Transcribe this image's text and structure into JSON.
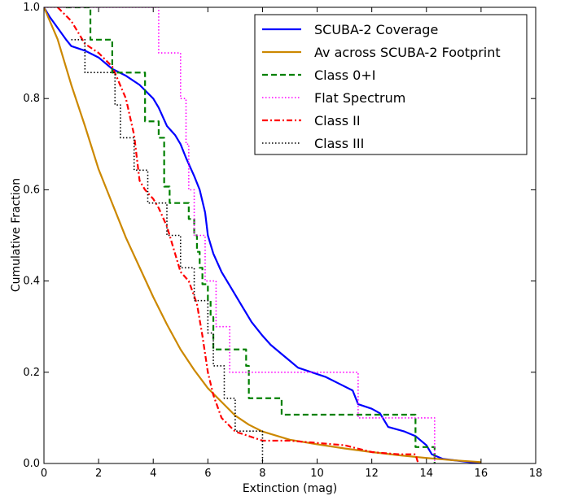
{
  "chart_data": {
    "type": "line",
    "title": "",
    "xlabel": "Extinction (mag)",
    "ylabel": "Cumulative Fraction",
    "xlim": [
      0,
      18
    ],
    "ylim": [
      0,
      1.0
    ],
    "x_ticks": [
      0,
      2,
      4,
      6,
      8,
      10,
      12,
      14,
      16,
      18
    ],
    "y_ticks": [
      0.0,
      0.2,
      0.4,
      0.6,
      0.8,
      1.0
    ],
    "grid": false,
    "legend_position": "top-right",
    "series": [
      {
        "name": "SCUBA-2 Coverage",
        "color": "#0000ff",
        "style": "solid",
        "step": false,
        "points": [
          [
            0.0,
            1.0
          ],
          [
            0.2,
            0.98
          ],
          [
            0.5,
            0.955
          ],
          [
            0.8,
            0.93
          ],
          [
            1.0,
            0.915
          ],
          [
            1.5,
            0.905
          ],
          [
            2.0,
            0.89
          ],
          [
            2.5,
            0.865
          ],
          [
            3.0,
            0.85
          ],
          [
            3.5,
            0.83
          ],
          [
            4.0,
            0.8
          ],
          [
            4.2,
            0.78
          ],
          [
            4.5,
            0.74
          ],
          [
            4.8,
            0.72
          ],
          [
            5.0,
            0.7
          ],
          [
            5.2,
            0.67
          ],
          [
            5.5,
            0.63
          ],
          [
            5.7,
            0.6
          ],
          [
            5.9,
            0.55
          ],
          [
            6.0,
            0.5
          ],
          [
            6.2,
            0.46
          ],
          [
            6.5,
            0.42
          ],
          [
            6.8,
            0.39
          ],
          [
            7.0,
            0.37
          ],
          [
            7.3,
            0.34
          ],
          [
            7.6,
            0.31
          ],
          [
            8.0,
            0.28
          ],
          [
            8.3,
            0.26
          ],
          [
            8.7,
            0.24
          ],
          [
            9.0,
            0.225
          ],
          [
            9.3,
            0.21
          ],
          [
            9.8,
            0.2
          ],
          [
            10.3,
            0.19
          ],
          [
            10.8,
            0.175
          ],
          [
            11.3,
            0.16
          ],
          [
            11.5,
            0.13
          ],
          [
            12.0,
            0.12
          ],
          [
            12.3,
            0.11
          ],
          [
            12.6,
            0.08
          ],
          [
            13.2,
            0.07
          ],
          [
            13.6,
            0.06
          ],
          [
            13.8,
            0.05
          ],
          [
            14.0,
            0.04
          ],
          [
            14.2,
            0.02
          ],
          [
            14.6,
            0.01
          ],
          [
            16.0,
            0.0
          ]
        ]
      },
      {
        "name": "Av across SCUBA-2 Footprint",
        "color": "#cc8800",
        "style": "solid",
        "step": false,
        "points": [
          [
            0.0,
            1.0
          ],
          [
            0.5,
            0.93
          ],
          [
            1.0,
            0.83
          ],
          [
            1.5,
            0.74
          ],
          [
            2.0,
            0.645
          ],
          [
            2.5,
            0.57
          ],
          [
            3.0,
            0.495
          ],
          [
            3.5,
            0.43
          ],
          [
            4.0,
            0.365
          ],
          [
            4.5,
            0.305
          ],
          [
            5.0,
            0.25
          ],
          [
            5.5,
            0.205
          ],
          [
            6.0,
            0.165
          ],
          [
            6.5,
            0.135
          ],
          [
            7.0,
            0.105
          ],
          [
            7.5,
            0.085
          ],
          [
            8.0,
            0.07
          ],
          [
            9.0,
            0.052
          ],
          [
            10.0,
            0.042
          ],
          [
            11.0,
            0.033
          ],
          [
            12.0,
            0.025
          ],
          [
            13.0,
            0.018
          ],
          [
            14.0,
            0.012
          ],
          [
            15.0,
            0.007
          ],
          [
            16.0,
            0.003
          ]
        ]
      },
      {
        "name": "Class 0+I",
        "color": "#008000",
        "style": "dashed",
        "step": true,
        "points": [
          [
            0.8,
            1.0
          ],
          [
            1.7,
            0.929
          ],
          [
            2.5,
            0.857
          ],
          [
            3.7,
            0.75
          ],
          [
            4.2,
            0.714
          ],
          [
            4.4,
            0.607
          ],
          [
            4.6,
            0.571
          ],
          [
            5.3,
            0.536
          ],
          [
            5.5,
            0.5
          ],
          [
            5.6,
            0.464
          ],
          [
            5.7,
            0.429
          ],
          [
            5.8,
            0.393
          ],
          [
            6.0,
            0.357
          ],
          [
            6.1,
            0.321
          ],
          [
            6.2,
            0.25
          ],
          [
            7.4,
            0.214
          ],
          [
            7.5,
            0.143
          ],
          [
            8.7,
            0.107
          ],
          [
            13.6,
            0.036
          ],
          [
            14.3,
            0.0
          ]
        ]
      },
      {
        "name": "Flat Spectrum",
        "color": "#ff00ff",
        "style": "dotted",
        "step": true,
        "points": [
          [
            0.0,
            1.0
          ],
          [
            4.2,
            0.9
          ],
          [
            5.0,
            0.8
          ],
          [
            5.2,
            0.7
          ],
          [
            5.3,
            0.6
          ],
          [
            5.5,
            0.5
          ],
          [
            5.9,
            0.4
          ],
          [
            6.3,
            0.3
          ],
          [
            6.8,
            0.2
          ],
          [
            11.5,
            0.1
          ],
          [
            14.3,
            0.0
          ]
        ]
      },
      {
        "name": "Class II",
        "color": "#ff0000",
        "style": "dashdot",
        "step": false,
        "points": [
          [
            0.5,
            1.0
          ],
          [
            1.0,
            0.97
          ],
          [
            1.5,
            0.92
          ],
          [
            2.0,
            0.9
          ],
          [
            2.5,
            0.87
          ],
          [
            3.0,
            0.8
          ],
          [
            3.3,
            0.72
          ],
          [
            3.5,
            0.62
          ],
          [
            3.7,
            0.6
          ],
          [
            4.0,
            0.58
          ],
          [
            4.2,
            0.56
          ],
          [
            4.5,
            0.52
          ],
          [
            4.8,
            0.46
          ],
          [
            5.0,
            0.42
          ],
          [
            5.3,
            0.4
          ],
          [
            5.6,
            0.35
          ],
          [
            5.8,
            0.28
          ],
          [
            6.0,
            0.2
          ],
          [
            6.2,
            0.15
          ],
          [
            6.5,
            0.1
          ],
          [
            7.0,
            0.07
          ],
          [
            7.5,
            0.06
          ],
          [
            8.0,
            0.05
          ],
          [
            9.0,
            0.05
          ],
          [
            10.0,
            0.045
          ],
          [
            11.0,
            0.04
          ],
          [
            12.0,
            0.025
          ],
          [
            13.0,
            0.02
          ],
          [
            13.6,
            0.02
          ],
          [
            13.7,
            0.0
          ]
        ]
      },
      {
        "name": "Class III",
        "color": "#000000",
        "style": "dotted",
        "step": true,
        "points": [
          [
            1.0,
            0.929
          ],
          [
            1.5,
            0.857
          ],
          [
            2.6,
            0.786
          ],
          [
            2.8,
            0.714
          ],
          [
            3.3,
            0.643
          ],
          [
            3.8,
            0.571
          ],
          [
            4.5,
            0.5
          ],
          [
            5.0,
            0.429
          ],
          [
            5.5,
            0.357
          ],
          [
            6.0,
            0.286
          ],
          [
            6.2,
            0.214
          ],
          [
            6.6,
            0.143
          ],
          [
            7.0,
            0.071
          ],
          [
            8.0,
            0.0
          ]
        ]
      }
    ]
  }
}
